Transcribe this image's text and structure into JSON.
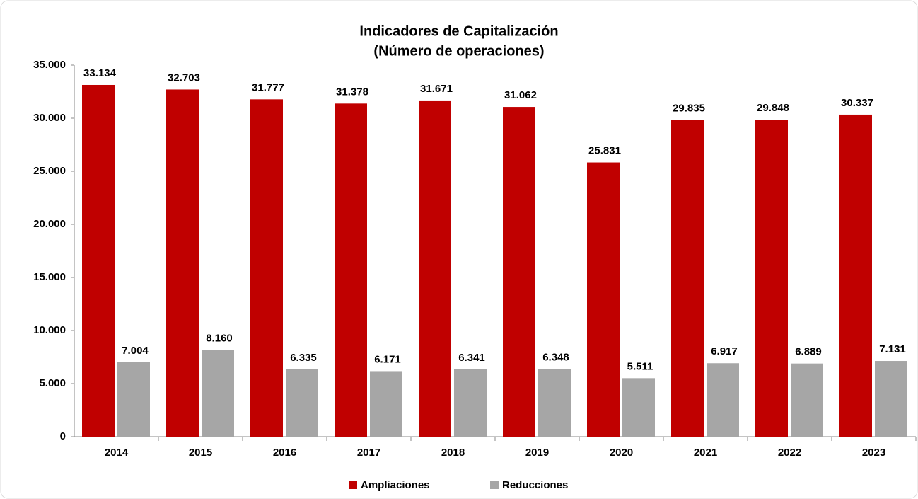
{
  "chart_data": {
    "type": "bar",
    "title": "Indicadores de Capitalización",
    "subtitle": "(Número de operaciones)",
    "categories": [
      "2014",
      "2015",
      "2016",
      "2017",
      "2018",
      "2019",
      "2020",
      "2021",
      "2022",
      "2023"
    ],
    "series": [
      {
        "name": "Ampliaciones",
        "color": "#c00000",
        "values": [
          33134,
          32703,
          31777,
          31378,
          31671,
          31062,
          25831,
          29835,
          29848,
          30337
        ],
        "value_labels": [
          "33.134",
          "32.703",
          "31.777",
          "31.378",
          "31.671",
          "31.062",
          "25.831",
          "29.835",
          "29.848",
          "30.337"
        ]
      },
      {
        "name": "Reducciones",
        "color": "#a6a6a6",
        "values": [
          7004,
          8160,
          6335,
          6171,
          6341,
          6348,
          5511,
          6917,
          6889,
          7131
        ],
        "value_labels": [
          "7.004",
          "8.160",
          "6.335",
          "6.171",
          "6.341",
          "6.348",
          "5.511",
          "6.917",
          "6.889",
          "7.131"
        ]
      }
    ],
    "ylim": [
      0,
      35000
    ],
    "yticks": [
      0,
      {
        "value": 5000,
        "label": "5.000"
      },
      {
        "value": 10000,
        "label": "10.000"
      },
      {
        "value": 15000,
        "label": "15.000"
      },
      {
        "value": 20000,
        "label": "20.000"
      },
      {
        "value": 25000,
        "label": "25.000"
      },
      {
        "value": 30000,
        "label": "30.000"
      },
      {
        "value": 35000,
        "label": "35.000"
      }
    ],
    "grid": false,
    "legend": "bottom"
  }
}
